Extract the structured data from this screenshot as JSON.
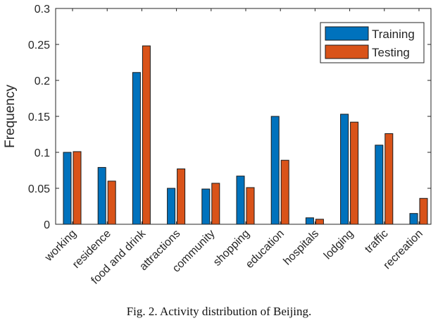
{
  "chart_data": {
    "type": "bar",
    "title": "",
    "xlabel": "",
    "ylabel": "Frequency",
    "ylim": [
      0,
      0.3
    ],
    "yticks": [
      "0",
      "0.05",
      "0.1",
      "0.15",
      "0.2",
      "0.25",
      "0.3"
    ],
    "categories": [
      "working",
      "residence",
      "food and drink",
      "attractions",
      "community",
      "shopping",
      "education",
      "hospitals",
      "lodging",
      "traffic",
      "recreation"
    ],
    "series": [
      {
        "name": "Training",
        "color": "#0072BD",
        "values": [
          0.1,
          0.079,
          0.211,
          0.05,
          0.049,
          0.067,
          0.15,
          0.009,
          0.153,
          0.11,
          0.015
        ]
      },
      {
        "name": "Testing",
        "color": "#D95319",
        "values": [
          0.101,
          0.06,
          0.248,
          0.077,
          0.057,
          0.051,
          0.089,
          0.007,
          0.142,
          0.126,
          0.036
        ]
      }
    ],
    "legend_position": "top-right",
    "grid": false
  },
  "caption": "Fig. 2.  Activity distribution of Beijing."
}
